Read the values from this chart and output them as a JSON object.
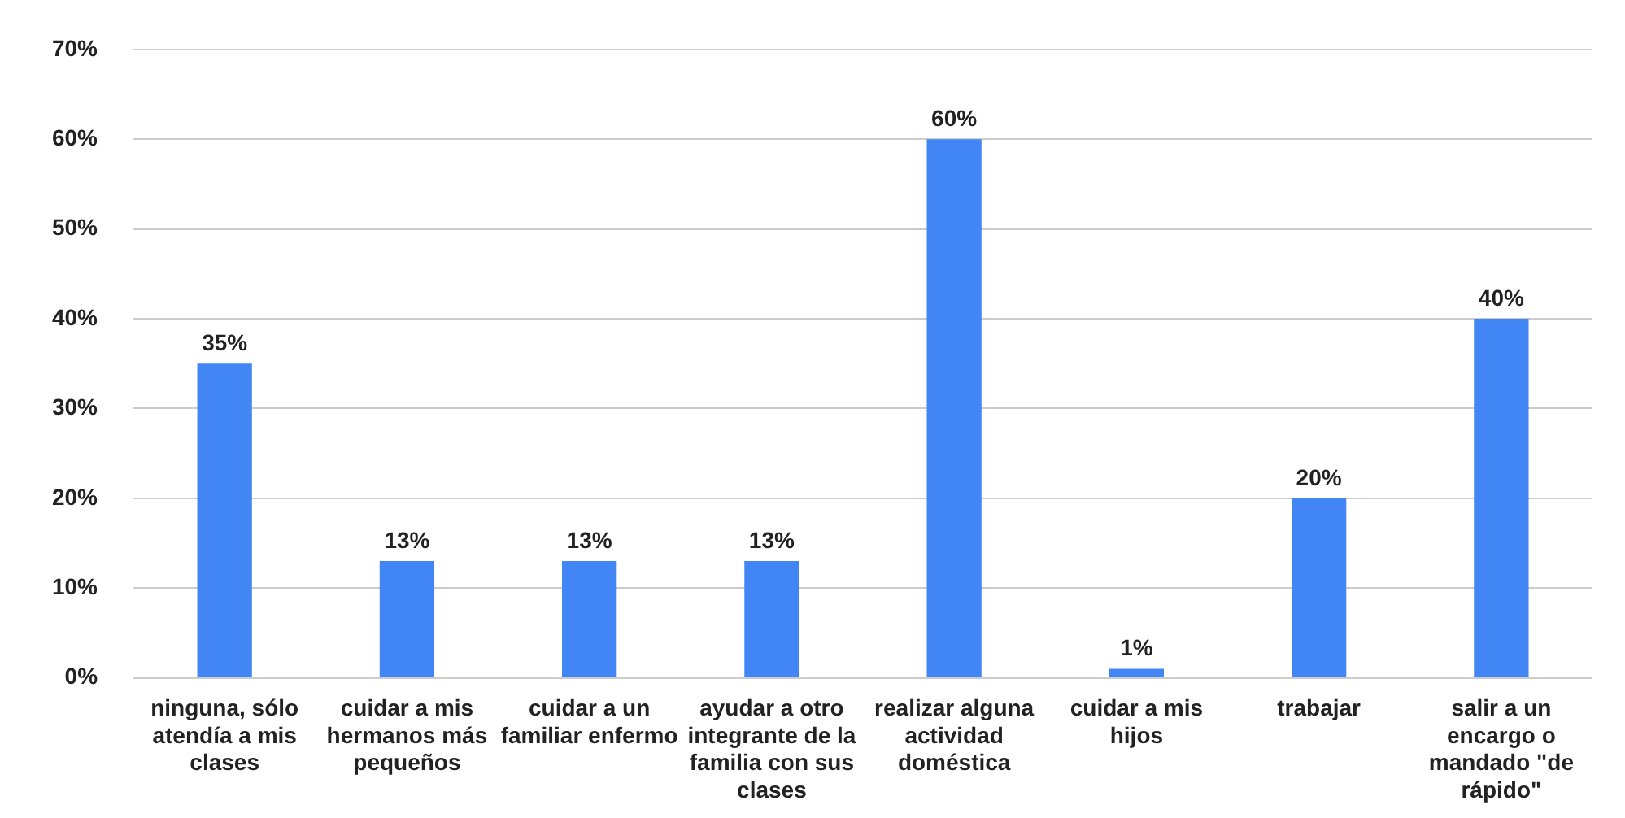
{
  "chart_data": {
    "type": "bar",
    "categories": [
      "ninguna, sólo atendía a mis clases",
      "cuidar a mis hermanos más pequeños",
      "cuidar a un familiar enfermo",
      "ayudar a otro integrante de la familia con sus clases",
      "realizar alguna actividad doméstica",
      "cuidar a mis hijos",
      "trabajar",
      "salir a un encargo o mandado \"de rápido\""
    ],
    "values": [
      35,
      13,
      13,
      13,
      60,
      1,
      20,
      40
    ],
    "value_labels": [
      "35%",
      "13%",
      "13%",
      "13%",
      "60%",
      "1%",
      "20%",
      "40%"
    ],
    "color": "#4285f4",
    "ylim": [
      0,
      70
    ],
    "yticks": [
      {
        "value": 0,
        "label": "0%"
      },
      {
        "value": 10,
        "label": "10%"
      },
      {
        "value": 20,
        "label": "20%"
      },
      {
        "value": 30,
        "label": "30%"
      },
      {
        "value": 40,
        "label": "40%"
      },
      {
        "value": 50,
        "label": "50%"
      },
      {
        "value": 60,
        "label": "60%"
      },
      {
        "value": 70,
        "label": "70%"
      }
    ],
    "grid": "y",
    "legend": false
  }
}
